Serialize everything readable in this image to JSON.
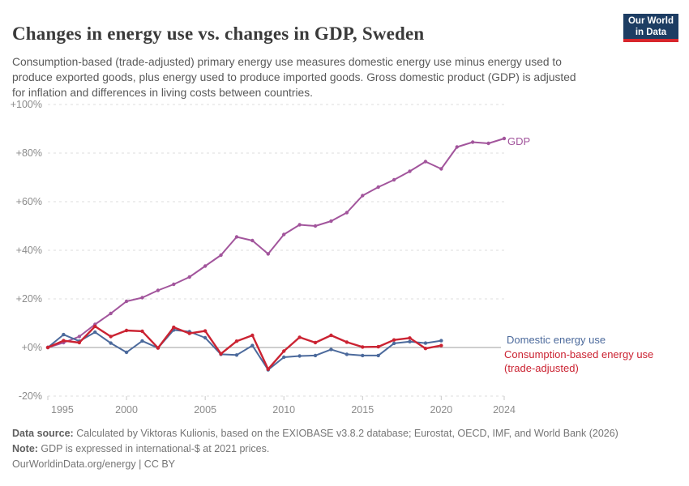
{
  "header": {
    "title": "Changes in energy use vs. changes in GDP, Sweden",
    "subtitle": "Consumption-based (trade-adjusted) primary energy use measures domestic energy use minus energy used to produce exported goods, plus energy used to produce imported goods. Gross domestic product (GDP) is adjusted for inflation and differences in living costs between countries.",
    "logo": {
      "line1": "Our World",
      "line2": "in Data"
    }
  },
  "chart_data": {
    "type": "line",
    "title": "Changes in energy use vs. changes in GDP, Sweden",
    "xlabel": "",
    "ylabel": "",
    "xlim": [
      1995,
      2024
    ],
    "ylim": [
      -20,
      100
    ],
    "grid": "dashed horizontal gridlines, solid zero line",
    "legend_position": "end-of-line labels at right",
    "yticks": [
      {
        "value": 100,
        "label": "+100%"
      },
      {
        "value": 80,
        "label": "+80%"
      },
      {
        "value": 60,
        "label": "+60%"
      },
      {
        "value": 40,
        "label": "+40%"
      },
      {
        "value": 20,
        "label": "+20%"
      },
      {
        "value": 0,
        "label": "+0%"
      },
      {
        "value": -20,
        "label": "-20%"
      }
    ],
    "xticks": [
      1995,
      2000,
      2005,
      2010,
      2015,
      2020,
      2024
    ],
    "series": [
      {
        "name": "GDP",
        "label_lines": [
          "GDP"
        ],
        "color": "#a2559c",
        "years": [
          1995,
          1996,
          1997,
          1998,
          1999,
          2000,
          2001,
          2002,
          2003,
          2004,
          2005,
          2006,
          2007,
          2008,
          2009,
          2010,
          2011,
          2012,
          2013,
          2014,
          2015,
          2016,
          2017,
          2018,
          2019,
          2020,
          2021,
          2022,
          2023,
          2024
        ],
        "values": [
          0,
          2,
          4.5,
          9.5,
          14,
          19,
          20.5,
          23.5,
          26,
          29,
          33.5,
          38,
          45.5,
          44,
          38.5,
          46.5,
          50.5,
          50,
          52,
          55.5,
          62.5,
          66,
          69,
          72.5,
          76.5,
          73.5,
          82.5,
          84.5,
          84,
          86
        ]
      },
      {
        "name": "Domestic energy use",
        "label_lines": [
          "Domestic energy use"
        ],
        "color": "#4c6a9c",
        "years": [
          1995,
          1996,
          1997,
          1998,
          1999,
          2000,
          2001,
          2002,
          2003,
          2004,
          2005,
          2006,
          2007,
          2008,
          2009,
          2010,
          2011,
          2012,
          2013,
          2014,
          2015,
          2016,
          2017,
          2018,
          2019,
          2020
        ],
        "values": [
          0,
          5.3,
          2.6,
          6.3,
          1.8,
          -2,
          2.7,
          -0.2,
          7.2,
          6.5,
          4,
          -2.8,
          -3.1,
          0.8,
          -9.2,
          -4,
          -3.5,
          -3.3,
          -0.8,
          -2.8,
          -3.3,
          -3.3,
          1.7,
          2.4,
          1.8,
          2.8
        ]
      },
      {
        "name": "Consumption-based energy use (trade-adjusted)",
        "label_lines": [
          "Consumption-based energy use",
          "(trade-adjusted)"
        ],
        "color": "#cb2332",
        "years": [
          1995,
          1996,
          1997,
          1998,
          1999,
          2000,
          2001,
          2002,
          2003,
          2004,
          2005,
          2006,
          2007,
          2008,
          2009,
          2010,
          2011,
          2012,
          2013,
          2014,
          2015,
          2016,
          2017,
          2018,
          2019,
          2020
        ],
        "values": [
          0,
          2.8,
          2,
          8.7,
          4.5,
          7,
          6.7,
          -0.2,
          8.3,
          5.8,
          6.8,
          -2.6,
          2.6,
          5,
          -8.9,
          -1.5,
          4.2,
          2,
          5,
          2.2,
          0.2,
          0.3,
          3.1,
          3.9,
          -0.4,
          0.8
        ]
      }
    ]
  },
  "footer": {
    "data_source_label": "Data source:",
    "data_source_text": " Calculated by Viktoras Kulionis, based on the EXIOBASE v3.8.2 database; Eurostat, OECD, IMF, and World Bank (2026)",
    "note_label": "Note:",
    "note_text": " GDP is expressed in international-$ at 2021 prices.",
    "link": "OurWorldinData.org/energy | CC BY"
  }
}
